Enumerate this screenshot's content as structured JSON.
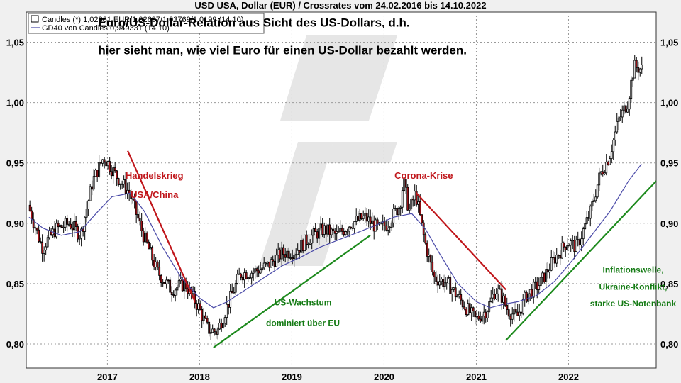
{
  "chart_data": {
    "type": "candlestick",
    "title": "USD USA, Dollar (EUR) / Crossrates vom 24.02.2016 bis 14.10.2022",
    "legend": [
      {
        "label": "Candles (*) 1,02861 EUR/1,02697/1,03769/1,0199 (14.10)",
        "style": "box"
      },
      {
        "label": "GD40 von Candles 0,949331 (14.10)",
        "style": "line",
        "color": "#4a4aa8"
      }
    ],
    "legend_position": "top-left",
    "y_ticks": [
      "0,80",
      "0,85",
      "0,90",
      "0,95",
      "1,00",
      "1,05"
    ],
    "y_tick_values": [
      0.8,
      0.85,
      0.9,
      0.95,
      1.0,
      1.05
    ],
    "ylim": [
      0.78,
      1.075
    ],
    "x_ticks": [
      "2017",
      "2018",
      "2019",
      "2020",
      "2021",
      "2022"
    ],
    "x_tick_values": [
      2017.0,
      2018.0,
      2019.0,
      2020.0,
      2021.0,
      2022.0
    ],
    "xlim": [
      2016.12,
      2022.95
    ],
    "grid": true,
    "price_path": [
      [
        2016.15,
        0.915
      ],
      [
        2016.3,
        0.88
      ],
      [
        2016.45,
        0.895
      ],
      [
        2016.6,
        0.9
      ],
      [
        2016.72,
        0.89
      ],
      [
        2016.85,
        0.935
      ],
      [
        2016.97,
        0.955
      ],
      [
        2017.1,
        0.94
      ],
      [
        2017.25,
        0.925
      ],
      [
        2017.4,
        0.89
      ],
      [
        2017.55,
        0.86
      ],
      [
        2017.7,
        0.845
      ],
      [
        2017.85,
        0.85
      ],
      [
        2018.0,
        0.83
      ],
      [
        2018.1,
        0.812
      ],
      [
        2018.2,
        0.81
      ],
      [
        2018.3,
        0.83
      ],
      [
        2018.45,
        0.858
      ],
      [
        2018.6,
        0.86
      ],
      [
        2018.75,
        0.865
      ],
      [
        2018.9,
        0.875
      ],
      [
        2019.05,
        0.877
      ],
      [
        2019.2,
        0.888
      ],
      [
        2019.35,
        0.895
      ],
      [
        2019.5,
        0.89
      ],
      [
        2019.65,
        0.9
      ],
      [
        2019.8,
        0.905
      ],
      [
        2019.95,
        0.895
      ],
      [
        2020.05,
        0.9
      ],
      [
        2020.18,
        0.915
      ],
      [
        2020.22,
        0.935
      ],
      [
        2020.28,
        0.91
      ],
      [
        2020.35,
        0.925
      ],
      [
        2020.45,
        0.885
      ],
      [
        2020.55,
        0.855
      ],
      [
        2020.7,
        0.85
      ],
      [
        2020.85,
        0.835
      ],
      [
        2021.0,
        0.82
      ],
      [
        2021.12,
        0.828
      ],
      [
        2021.22,
        0.845
      ],
      [
        2021.28,
        0.84
      ],
      [
        2021.35,
        0.828
      ],
      [
        2021.45,
        0.822
      ],
      [
        2021.55,
        0.84
      ],
      [
        2021.7,
        0.85
      ],
      [
        2021.85,
        0.87
      ],
      [
        2022.0,
        0.885
      ],
      [
        2022.1,
        0.88
      ],
      [
        2022.25,
        0.91
      ],
      [
        2022.35,
        0.94
      ],
      [
        2022.45,
        0.955
      ],
      [
        2022.55,
        0.985
      ],
      [
        2022.65,
        1.0
      ],
      [
        2022.72,
        1.03
      ],
      [
        2022.79,
        1.028
      ]
    ],
    "gd40_path": [
      [
        2016.15,
        0.905
      ],
      [
        2016.3,
        0.896
      ],
      [
        2016.5,
        0.89
      ],
      [
        2016.7,
        0.893
      ],
      [
        2016.9,
        0.91
      ],
      [
        2017.05,
        0.922
      ],
      [
        2017.25,
        0.925
      ],
      [
        2017.4,
        0.91
      ],
      [
        2017.6,
        0.88
      ],
      [
        2017.8,
        0.855
      ],
      [
        2018.0,
        0.838
      ],
      [
        2018.15,
        0.83
      ],
      [
        2018.3,
        0.835
      ],
      [
        2018.5,
        0.845
      ],
      [
        2018.7,
        0.855
      ],
      [
        2018.9,
        0.865
      ],
      [
        2019.1,
        0.872
      ],
      [
        2019.3,
        0.88
      ],
      [
        2019.5,
        0.886
      ],
      [
        2019.7,
        0.892
      ],
      [
        2019.9,
        0.898
      ],
      [
        2020.1,
        0.905
      ],
      [
        2020.3,
        0.908
      ],
      [
        2020.45,
        0.895
      ],
      [
        2020.6,
        0.875
      ],
      [
        2020.8,
        0.85
      ],
      [
        2021.0,
        0.835
      ],
      [
        2021.15,
        0.83
      ],
      [
        2021.3,
        0.833
      ],
      [
        2021.45,
        0.835
      ],
      [
        2021.65,
        0.84
      ],
      [
        2021.85,
        0.852
      ],
      [
        2022.05,
        0.87
      ],
      [
        2022.25,
        0.89
      ],
      [
        2022.45,
        0.91
      ],
      [
        2022.65,
        0.935
      ],
      [
        2022.79,
        0.949
      ]
    ],
    "trendlines": [
      {
        "color": "#c0161b",
        "from": [
          2017.22,
          0.96
        ],
        "to": [
          2017.95,
          0.835
        ]
      },
      {
        "color": "#c0161b",
        "from": [
          2020.35,
          0.925
        ],
        "to": [
          2021.32,
          0.845
        ]
      },
      {
        "color": "#1d8a1d",
        "from": [
          2018.15,
          0.797
        ],
        "to": [
          2019.85,
          0.89
        ]
      },
      {
        "color": "#1d8a1d",
        "from": [
          2021.32,
          0.803
        ],
        "to": [
          2022.95,
          0.935
        ]
      }
    ],
    "annotations": [
      {
        "text": "Euro/US-Dollar-Relation aus Sicht des US-Dollars, d.h.",
        "color": "black",
        "at": [
          2016.9,
          1.063
        ]
      },
      {
        "text": "hier sieht man, wie viel Euro für einen US-Dollar bezahlt werden.",
        "color": "black",
        "at": [
          2016.9,
          1.04
        ]
      },
      {
        "text": "Handelskrieg",
        "color": "red",
        "at": [
          2017.51,
          0.937
        ]
      },
      {
        "text": "USA/China",
        "color": "red",
        "at": [
          2017.51,
          0.921
        ]
      },
      {
        "text": "Corona-Krise",
        "color": "red",
        "at": [
          2020.43,
          0.937
        ]
      },
      {
        "text": "US-Wachstum",
        "color": "green",
        "at": [
          2019.12,
          0.832
        ]
      },
      {
        "text": "dominiert über EU",
        "color": "green",
        "at": [
          2019.12,
          0.815
        ]
      },
      {
        "text": "Inflationswelle,",
        "color": "green",
        "at": [
          2022.7,
          0.859
        ]
      },
      {
        "text": "Ukraine-Konflikt,",
        "color": "green",
        "at": [
          2022.7,
          0.845
        ]
      },
      {
        "text": "starke US-Notenbank",
        "color": "green",
        "at": [
          2022.7,
          0.831
        ]
      }
    ]
  }
}
